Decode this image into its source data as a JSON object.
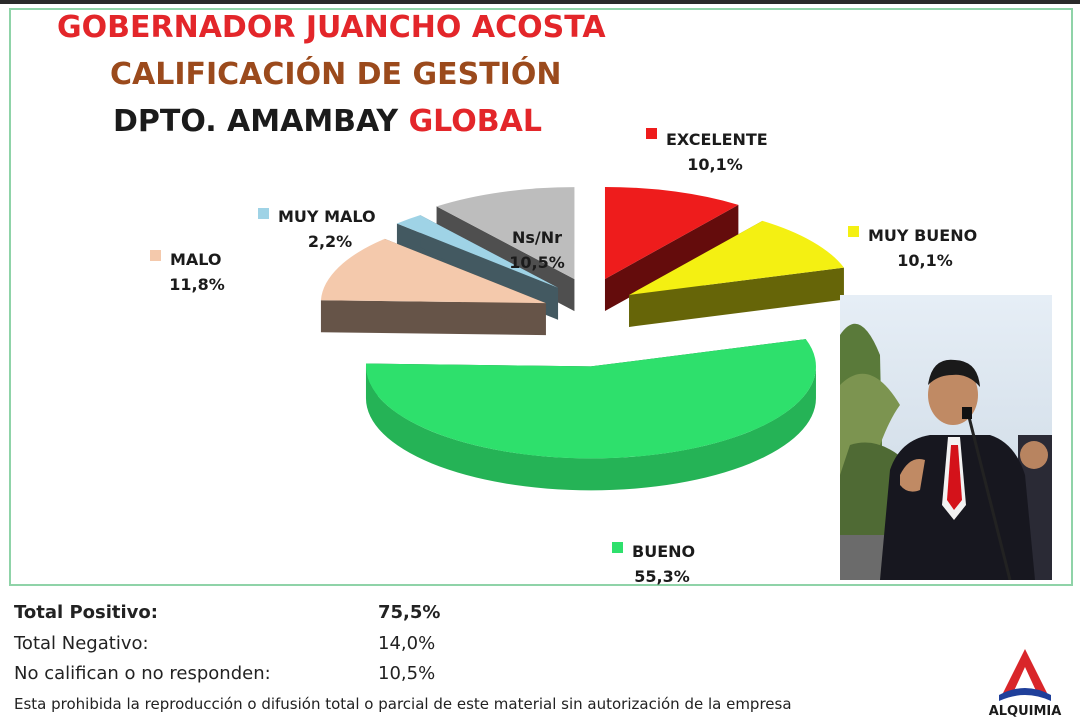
{
  "header": {
    "line1": "GOBERNADOR JUANCHO ACOSTA",
    "line2": "CALIFICACIÓN DE GESTIÓN",
    "line3_a": "DPTO. AMAMBAY ",
    "line3_b": "GLOBAL"
  },
  "chart_data": {
    "type": "pie",
    "slices": [
      {
        "name": "EXCELENTE",
        "label": "10,1%",
        "value": 10.1,
        "color": "#ee1c1c"
      },
      {
        "name": "MUY BUENO",
        "label": "10,1%",
        "value": 10.1,
        "color": "#f4f012"
      },
      {
        "name": "BUENO",
        "label": "55,3%",
        "value": 55.3,
        "color": "#2ee06c"
      },
      {
        "name": "MALO",
        "label": "11,8%",
        "value": 11.8,
        "color": "#f4c9ac"
      },
      {
        "name": "MUY MALO",
        "label": "2,2%",
        "value": 2.2,
        "color": "#9fd3e6"
      },
      {
        "name": "Ns/Nr",
        "label": "10,5%",
        "value": 10.5,
        "color": "#bdbdbd"
      }
    ]
  },
  "summary": [
    {
      "label": "Total Positivo:",
      "value": "75,5%"
    },
    {
      "label": "Total Negativo:",
      "value": "14,0%"
    },
    {
      "label": "No califican o no responden:",
      "value": "10,5%"
    }
  ],
  "disclaimer": "Esta prohibida la reproducción o difusión total o parcial de este material sin autorización de la empresa",
  "logo": {
    "text": "ALQUIMIA",
    "letters": "AC",
    "colors": {
      "red": "#d9262a",
      "blue": "#1f3f9a"
    }
  }
}
